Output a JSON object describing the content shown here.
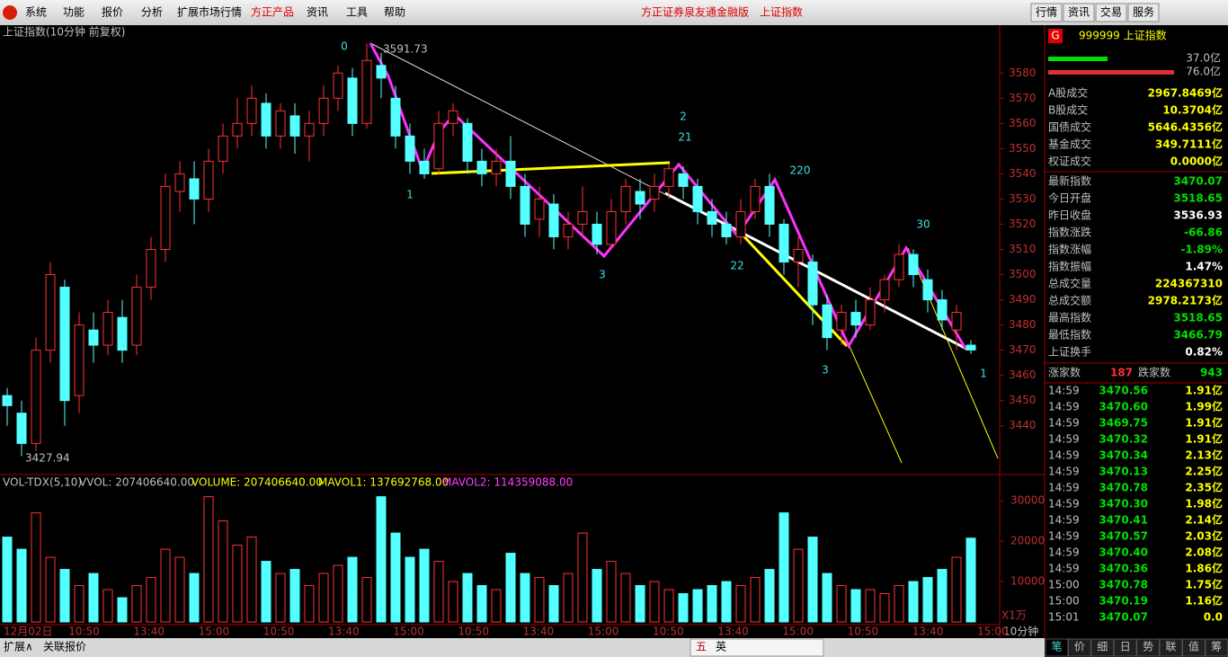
{
  "menu": {
    "items": [
      "系统",
      "功能",
      "报价",
      "分析",
      "扩展市场行情",
      "方正产品",
      "资讯",
      "工具",
      "帮助"
    ],
    "app_title": "方正证券泉友通金融版",
    "security": "上证指数",
    "buttons": [
      "行情",
      "资讯",
      "交易",
      "服务"
    ]
  },
  "chart_data": {
    "type": "candlestick",
    "title": "上证指数(10分钟 前复权)",
    "open": [
      3452,
      3445,
      3433,
      3470,
      3495,
      3452,
      3478,
      3472,
      3483,
      3472,
      3495,
      3510,
      3533,
      3538,
      3530,
      3545,
      3555,
      3560,
      3568,
      3555,
      3563,
      3555,
      3560,
      3570,
      3578,
      3560,
      3583,
      3570,
      3555,
      3545,
      3542,
      3560,
      3560,
      3545,
      3540,
      3545,
      3535,
      3522,
      3528,
      3515,
      3520,
      3520,
      3512,
      3525,
      3533,
      3530,
      3535,
      3540,
      3535,
      3525,
      3520,
      3515,
      3525,
      3535,
      3520,
      3505,
      3505,
      3488,
      3478,
      3485,
      3480,
      3490,
      3498,
      3508,
      3498,
      3490,
      3478,
      3472
    ],
    "close": [
      3448,
      3433,
      3470,
      3500,
      3450,
      3480,
      3472,
      3485,
      3470,
      3495,
      3510,
      3535,
      3540,
      3530,
      3545,
      3555,
      3560,
      3570,
      3555,
      3565,
      3555,
      3560,
      3570,
      3580,
      3560,
      3585,
      3578,
      3555,
      3545,
      3540,
      3560,
      3565,
      3545,
      3540,
      3545,
      3535,
      3520,
      3530,
      3515,
      3520,
      3525,
      3512,
      3525,
      3535,
      3528,
      3535,
      3542,
      3535,
      3525,
      3520,
      3515,
      3525,
      3535,
      3520,
      3505,
      3510,
      3488,
      3475,
      3485,
      3480,
      3490,
      3498,
      3508,
      3500,
      3490,
      3482,
      3485,
      3470.07
    ],
    "high": [
      3455,
      3450,
      3475,
      3505,
      3498,
      3485,
      3485,
      3490,
      3490,
      3500,
      3515,
      3540,
      3545,
      3545,
      3550,
      3560,
      3570,
      3575,
      3572,
      3568,
      3568,
      3565,
      3575,
      3583,
      3582,
      3591.73,
      3588,
      3575,
      3560,
      3550,
      3565,
      3568,
      3562,
      3550,
      3550,
      3555,
      3540,
      3535,
      3532,
      3525,
      3535,
      3525,
      3530,
      3538,
      3538,
      3540,
      3544,
      3543,
      3538,
      3530,
      3525,
      3530,
      3538,
      3540,
      3522,
      3515,
      3508,
      3492,
      3488,
      3490,
      3495,
      3500,
      3512,
      3510,
      3502,
      3494,
      3488,
      3474
    ],
    "low": [
      3440,
      3427.94,
      3430,
      3465,
      3440,
      3445,
      3465,
      3468,
      3465,
      3468,
      3490,
      3505,
      3525,
      3520,
      3525,
      3540,
      3550,
      3555,
      3550,
      3550,
      3548,
      3545,
      3555,
      3565,
      3555,
      3558,
      3570,
      3550,
      3540,
      3538,
      3540,
      3555,
      3540,
      3535,
      3535,
      3530,
      3515,
      3515,
      3510,
      3510,
      3515,
      3508,
      3510,
      3520,
      3522,
      3525,
      3530,
      3530,
      3520,
      3515,
      3512,
      3512,
      3522,
      3515,
      3500,
      3495,
      3480,
      3470,
      3472,
      3475,
      3478,
      3485,
      3495,
      3495,
      3485,
      3478,
      3470,
      3468.5
    ],
    "volume": [
      21000,
      18000,
      27000,
      16000,
      13000,
      9000,
      12000,
      8000,
      6000,
      9000,
      11000,
      18000,
      16000,
      12000,
      31000,
      25000,
      19000,
      21000,
      15000,
      12000,
      13000,
      9000,
      12000,
      14000,
      16000,
      11000,
      31000,
      22000,
      16000,
      18000,
      15000,
      10000,
      12000,
      9000,
      8000,
      17000,
      12000,
      11000,
      9000,
      12000,
      22000,
      13000,
      15000,
      12000,
      9000,
      10000,
      8000,
      7000,
      8000,
      9000,
      10000,
      9000,
      11000,
      13000,
      27000,
      18000,
      21000,
      12000,
      9000,
      8000,
      8000,
      7000,
      9000,
      10000,
      11000,
      13000,
      16000,
      20740.664
    ],
    "up_color": "#ff3232",
    "down_color": "#54ffff",
    "ylim": [
      3421,
      3599
    ],
    "yticks": [
      3440,
      3450,
      3460,
      3470,
      3480,
      3490,
      3500,
      3510,
      3520,
      3530,
      3540,
      3550,
      3560,
      3570,
      3580
    ],
    "vol_ylim": [
      0,
      32700
    ],
    "vol_yticks": [
      10000,
      20000,
      30000
    ],
    "vol_unit": "X1万",
    "x_labels": [
      "12月02日",
      "10:50",
      "13:40",
      "15:00",
      "10:50",
      "13:40",
      "15:00",
      "10:50",
      "13:40",
      "15:00",
      "10:50",
      "13:40",
      "15:00",
      "10:50",
      "13:40",
      "15:00"
    ],
    "period": "10分钟",
    "high_label": "3591.73",
    "low_label": "3427.94",
    "wave_labels": [
      "0",
      "1",
      "3",
      "2",
      "21",
      "22",
      "220",
      "3",
      "30",
      "1"
    ],
    "vol_legend": [
      "VOL-TDX(5,10)",
      "VVOL: 207406640.00",
      "VOLUME: 207406640.00",
      "MAVOL1: 137692768.00",
      "MAVOL2: 114359088.00"
    ]
  },
  "quote_panel": {
    "badge": "G",
    "code_name": "999999 上证指数",
    "buy_amount": "37.0亿",
    "sell_amount": "76.0亿",
    "rows": [
      [
        "A股成交",
        "2967.8469亿"
      ],
      [
        "B股成交",
        "10.3704亿"
      ],
      [
        "国债成交",
        "5646.4356亿"
      ],
      [
        "基金成交",
        "349.7111亿"
      ],
      [
        "权证成交",
        "0.0000亿"
      ],
      [
        "最新指数",
        "3470.07"
      ],
      [
        "今日开盘",
        "3518.65"
      ],
      [
        "昨日收盘",
        "3536.93"
      ],
      [
        "指数涨跌",
        "-66.86"
      ],
      [
        "指数涨幅",
        "-1.89%"
      ],
      [
        "指数振幅",
        "1.47%"
      ],
      [
        "总成交量",
        "224367310"
      ],
      [
        "总成交额",
        "2978.2173亿"
      ],
      [
        "最高指数",
        "3518.65"
      ],
      [
        "最低指数",
        "3466.79"
      ],
      [
        "上证换手",
        "0.82%"
      ]
    ],
    "up_label": "涨家数",
    "up_count": "187",
    "down_label": "跌家数",
    "down_count": "943",
    "ticks": [
      [
        "14:59",
        "3470.56",
        "1.91亿"
      ],
      [
        "14:59",
        "3470.60",
        "1.99亿"
      ],
      [
        "14:59",
        "3469.75",
        "1.91亿"
      ],
      [
        "14:59",
        "3470.32",
        "1.91亿"
      ],
      [
        "14:59",
        "3470.34",
        "2.13亿"
      ],
      [
        "14:59",
        "3470.13",
        "2.25亿"
      ],
      [
        "14:59",
        "3470.78",
        "2.35亿"
      ],
      [
        "14:59",
        "3470.30",
        "1.98亿"
      ],
      [
        "14:59",
        "3470.41",
        "2.14亿"
      ],
      [
        "14:59",
        "3470.57",
        "2.03亿"
      ],
      [
        "14:59",
        "3470.40",
        "2.08亿"
      ],
      [
        "14:59",
        "3470.36",
        "1.86亿"
      ],
      [
        "15:00",
        "3470.78",
        "1.75亿"
      ],
      [
        "15:00",
        "3470.19",
        "1.16亿"
      ],
      [
        "15:01",
        "3470.07",
        "0.0"
      ]
    ],
    "tabs": [
      "笔",
      "价",
      "细",
      "日",
      "势",
      "联",
      "值",
      "筹"
    ]
  },
  "status_bar": {
    "left": [
      "扩展∧",
      "关联报价"
    ],
    "ime": [
      "五",
      "英"
    ]
  }
}
